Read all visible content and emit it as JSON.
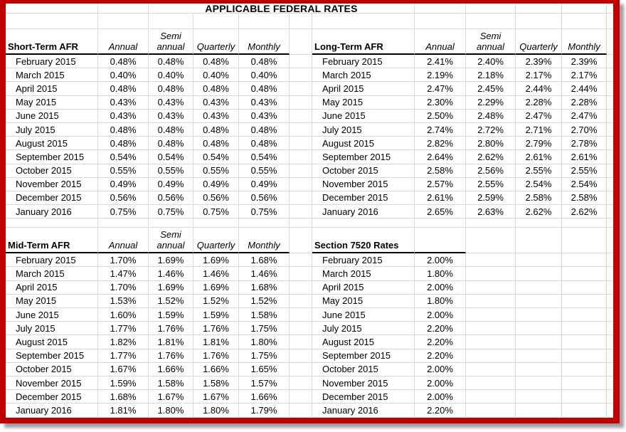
{
  "sheet": {
    "title": "APPLICABLE FEDERAL RATES",
    "rate_column_headers": [
      "Annual",
      "Semi annual",
      "Quarterly",
      "Monthly"
    ],
    "months": [
      "February 2015",
      "March 2015",
      "April 2015",
      "May 2015",
      "June 2015",
      "July 2015",
      "August 2015",
      "September 2015",
      "October 2015",
      "November 2015",
      "December 2015",
      "January 2016"
    ],
    "tables": [
      {
        "id": "short_term",
        "label": "Short-Term AFR",
        "has_rate_columns": true,
        "rates": [
          [
            "0.48%",
            "0.48%",
            "0.48%",
            "0.48%"
          ],
          [
            "0.40%",
            "0.40%",
            "0.40%",
            "0.40%"
          ],
          [
            "0.48%",
            "0.48%",
            "0.48%",
            "0.48%"
          ],
          [
            "0.43%",
            "0.43%",
            "0.43%",
            "0.43%"
          ],
          [
            "0.43%",
            "0.43%",
            "0.43%",
            "0.43%"
          ],
          [
            "0.48%",
            "0.48%",
            "0.48%",
            "0.48%"
          ],
          [
            "0.48%",
            "0.48%",
            "0.48%",
            "0.48%"
          ],
          [
            "0.54%",
            "0.54%",
            "0.54%",
            "0.54%"
          ],
          [
            "0.55%",
            "0.55%",
            "0.55%",
            "0.55%"
          ],
          [
            "0.49%",
            "0.49%",
            "0.49%",
            "0.49%"
          ],
          [
            "0.56%",
            "0.56%",
            "0.56%",
            "0.56%"
          ],
          [
            "0.75%",
            "0.75%",
            "0.75%",
            "0.75%"
          ]
        ]
      },
      {
        "id": "long_term",
        "label": "Long-Term AFR",
        "has_rate_columns": true,
        "rates": [
          [
            "2.41%",
            "2.40%",
            "2.39%",
            "2.39%"
          ],
          [
            "2.19%",
            "2.18%",
            "2.17%",
            "2.17%"
          ],
          [
            "2.47%",
            "2.45%",
            "2.44%",
            "2.44%"
          ],
          [
            "2.30%",
            "2.29%",
            "2.28%",
            "2.28%"
          ],
          [
            "2.50%",
            "2.48%",
            "2.47%",
            "2.47%"
          ],
          [
            "2.74%",
            "2.72%",
            "2.71%",
            "2.70%"
          ],
          [
            "2.82%",
            "2.80%",
            "2.79%",
            "2.78%"
          ],
          [
            "2.64%",
            "2.62%",
            "2.61%",
            "2.61%"
          ],
          [
            "2.58%",
            "2.56%",
            "2.55%",
            "2.55%"
          ],
          [
            "2.57%",
            "2.55%",
            "2.54%",
            "2.54%"
          ],
          [
            "2.61%",
            "2.59%",
            "2.58%",
            "2.58%"
          ],
          [
            "2.65%",
            "2.63%",
            "2.62%",
            "2.62%"
          ]
        ]
      },
      {
        "id": "mid_term",
        "label": "Mid-Term AFR",
        "has_rate_columns": true,
        "rates": [
          [
            "1.70%",
            "1.69%",
            "1.69%",
            "1.68%"
          ],
          [
            "1.47%",
            "1.46%",
            "1.46%",
            "1.46%"
          ],
          [
            "1.70%",
            "1.69%",
            "1.69%",
            "1.68%"
          ],
          [
            "1.53%",
            "1.52%",
            "1.52%",
            "1.52%"
          ],
          [
            "1.60%",
            "1.59%",
            "1.59%",
            "1.58%"
          ],
          [
            "1.77%",
            "1.76%",
            "1.76%",
            "1.75%"
          ],
          [
            "1.82%",
            "1.81%",
            "1.81%",
            "1.80%"
          ],
          [
            "1.77%",
            "1.76%",
            "1.76%",
            "1.75%"
          ],
          [
            "1.67%",
            "1.66%",
            "1.66%",
            "1.65%"
          ],
          [
            "1.59%",
            "1.58%",
            "1.58%",
            "1.57%"
          ],
          [
            "1.68%",
            "1.67%",
            "1.67%",
            "1.66%"
          ],
          [
            "1.81%",
            "1.80%",
            "1.80%",
            "1.79%"
          ]
        ]
      },
      {
        "id": "section_7520",
        "label": "Section 7520 Rates",
        "has_rate_columns": false,
        "rates": [
          [
            "2.00%"
          ],
          [
            "1.80%"
          ],
          [
            "2.00%"
          ],
          [
            "1.80%"
          ],
          [
            "2.00%"
          ],
          [
            "2.20%"
          ],
          [
            "2.20%"
          ],
          [
            "2.20%"
          ],
          [
            "2.00%"
          ],
          [
            "2.00%"
          ],
          [
            "2.00%"
          ],
          [
            "2.20%"
          ]
        ]
      }
    ]
  },
  "colors": {
    "frame": "#c00000",
    "gridline": "#d9d9d9",
    "header_underline": "#000000",
    "text": "#000000"
  }
}
